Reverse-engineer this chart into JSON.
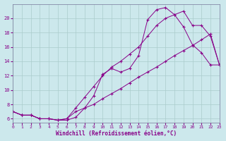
{
  "background_color": "#cce8ec",
  "grid_color": "#aacccc",
  "line_color": "#880088",
  "xlim": [
    0,
    23
  ],
  "ylim": [
    5.5,
    22
  ],
  "xticks": [
    0,
    1,
    2,
    3,
    4,
    5,
    6,
    7,
    8,
    9,
    10,
    11,
    12,
    13,
    14,
    15,
    16,
    17,
    18,
    19,
    20,
    21,
    22,
    23
  ],
  "yticks": [
    6,
    8,
    10,
    12,
    14,
    16,
    18,
    20
  ],
  "xlabel": "Windchill (Refroidissement éolien,°C)",
  "series1_x": [
    0,
    1,
    2,
    3,
    4,
    5,
    6,
    7,
    8,
    9,
    10,
    11,
    12,
    13,
    14,
    15,
    16,
    17,
    18,
    19,
    20,
    21,
    22,
    23
  ],
  "series1_y": [
    7.0,
    6.5,
    6.5,
    6.0,
    6.0,
    5.8,
    5.8,
    6.2,
    7.5,
    9.2,
    12.2,
    13.0,
    12.5,
    13.0,
    14.8,
    19.8,
    21.2,
    21.5,
    20.5,
    18.8,
    16.3,
    15.2,
    13.5,
    13.5
  ],
  "series2_x": [
    0,
    1,
    2,
    3,
    4,
    5,
    6,
    7,
    8,
    9,
    10,
    11,
    12,
    13,
    14,
    15,
    16,
    17,
    18,
    19,
    20,
    21,
    22,
    23
  ],
  "series2_y": [
    7.0,
    6.5,
    6.5,
    6.0,
    6.0,
    5.8,
    6.0,
    7.5,
    9.0,
    10.5,
    12.0,
    13.2,
    14.0,
    15.0,
    16.0,
    17.5,
    19.0,
    20.0,
    20.5,
    21.0,
    19.0,
    19.0,
    17.5,
    13.5
  ],
  "series3_x": [
    0,
    1,
    2,
    3,
    4,
    5,
    6,
    7,
    8,
    9,
    10,
    11,
    12,
    13,
    14,
    15,
    16,
    17,
    18,
    19,
    20,
    21,
    22,
    23
  ],
  "series3_y": [
    7.0,
    6.5,
    6.5,
    6.0,
    6.0,
    5.8,
    6.0,
    7.0,
    7.5,
    8.0,
    8.8,
    9.5,
    10.2,
    11.0,
    11.8,
    12.5,
    13.2,
    14.0,
    14.8,
    15.5,
    16.2,
    17.0,
    17.8,
    13.5
  ]
}
